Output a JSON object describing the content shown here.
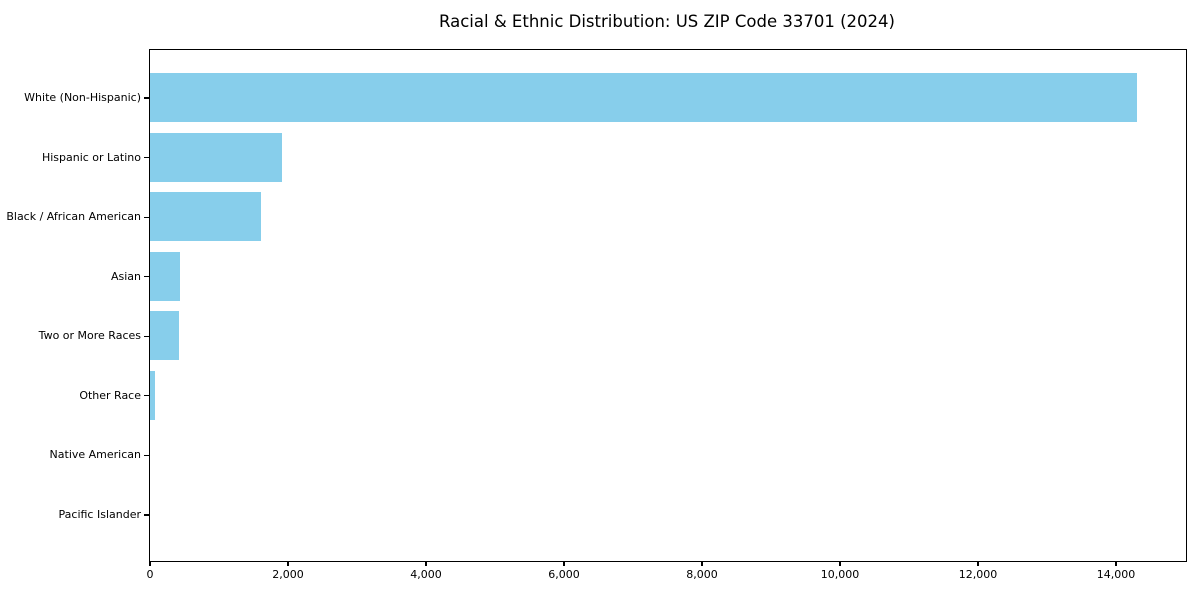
{
  "chart_data": {
    "type": "bar",
    "orientation": "horizontal",
    "title": "Racial & Ethnic Distribution: US ZIP Code 33701 (2024)",
    "categories": [
      "White (Non-Hispanic)",
      "Hispanic or Latino",
      "Black / African American",
      "Asian",
      "Two or More Races",
      "Other Race",
      "Native American",
      "Pacific Islander"
    ],
    "values": [
      14300,
      1925,
      1610,
      440,
      425,
      85,
      0,
      0
    ],
    "xlabel": "",
    "ylabel": "",
    "xlim": [
      0,
      15000
    ],
    "x_ticks": [
      {
        "value": 0,
        "label": "0"
      },
      {
        "value": 2000,
        "label": "2,000"
      },
      {
        "value": 4000,
        "label": "4,000"
      },
      {
        "value": 6000,
        "label": "6,000"
      },
      {
        "value": 8000,
        "label": "8,000"
      },
      {
        "value": 10000,
        "label": "10,000"
      },
      {
        "value": 12000,
        "label": "12,000"
      },
      {
        "value": 14000,
        "label": "14,000"
      }
    ],
    "bar_color": "#87CEEB",
    "axis_color": "#000000",
    "grid": false,
    "legend": "none"
  }
}
